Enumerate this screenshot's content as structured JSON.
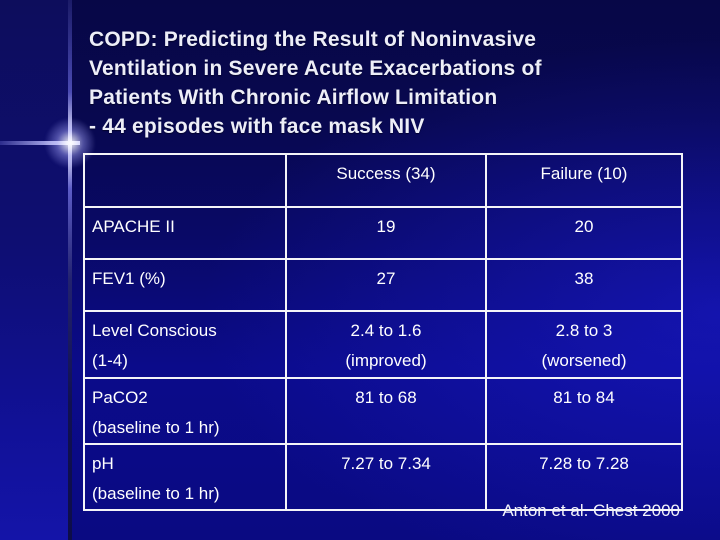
{
  "slide": {
    "title_lines": [
      "COPD: Predicting the Result of Noninvasive",
      "Ventilation in Severe Acute Exacerbations of",
      "Patients With Chronic Airflow Limitation",
      "- 44 episodes with face mask NIV"
    ],
    "citation": "Anton et al. Chest 2000"
  },
  "table": {
    "columns": [
      "",
      "Success (34)",
      "Failure (10)"
    ],
    "rows": [
      {
        "label": [
          "APACHE II"
        ],
        "success": [
          "19"
        ],
        "failure": [
          "20"
        ]
      },
      {
        "label": [
          "FEV1 (%)"
        ],
        "success": [
          "27"
        ],
        "failure": [
          "38"
        ]
      },
      {
        "label": [
          "Level Conscious",
          "(1-4)"
        ],
        "success": [
          "2.4 to 1.6",
          "(improved)"
        ],
        "failure": [
          "2.8 to 3",
          "(worsened)"
        ]
      },
      {
        "label": [
          "PaCO2",
          "(baseline to 1 hr)"
        ],
        "success": [
          "81 to 68"
        ],
        "failure": [
          "81 to 84"
        ]
      },
      {
        "label": [
          "pH",
          "(baseline to 1 hr)"
        ],
        "success": [
          "7.27 to 7.34"
        ],
        "failure": [
          "7.28 to 7.28"
        ]
      }
    ]
  },
  "colors": {
    "background_top": "#070747",
    "background_bright": "#1c1cd7",
    "side_band_top": "#0d0d5c",
    "side_band_bottom": "#1414a8",
    "table_border": "#f4f4f8",
    "text": "#ffffff",
    "title_text": "#edeef8"
  }
}
